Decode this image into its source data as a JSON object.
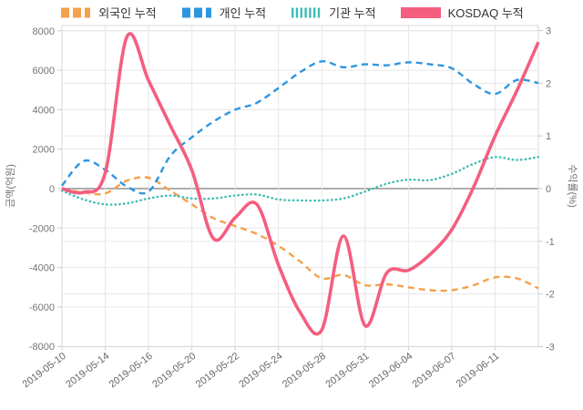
{
  "chart_data": {
    "type": "line",
    "title": "",
    "legend_position": "top",
    "grid": true,
    "x_tick_labels": [
      "2019-05-10",
      "2019-05-14",
      "2019-05-16",
      "2019-05-20",
      "2019-05-22",
      "2019-05-24",
      "2019-05-28",
      "2019-05-31",
      "2019-06-04",
      "2019-06-07",
      "2019-06-11"
    ],
    "x_tick_every_n_points": 2,
    "y_left": {
      "label": "금액(억원)",
      "ticks": [
        8000,
        6000,
        4000,
        2000,
        0,
        -2000,
        -4000,
        -6000,
        -8000
      ],
      "range": [
        -8000,
        8000
      ]
    },
    "y_right": {
      "label": "수익률(%)",
      "ticks": [
        3,
        2,
        1,
        0,
        -1,
        -2,
        -3
      ],
      "range": [
        -3,
        3
      ]
    },
    "series": [
      {
        "name": "외국인 누적",
        "color": "#F5A14B",
        "style": "dashed",
        "axis": "left",
        "values": [
          0,
          -200,
          -250,
          400,
          550,
          -100,
          -800,
          -1500,
          -1900,
          -2300,
          -2900,
          -3700,
          -4550,
          -4380,
          -4900,
          -4850,
          -5000,
          -5150,
          -5150,
          -4900,
          -4500,
          -4550,
          -5050
        ]
      },
      {
        "name": "개인 누적",
        "color": "#2E96E0",
        "style": "dashed",
        "axis": "left",
        "values": [
          150,
          1400,
          950,
          100,
          -150,
          1650,
          2600,
          3400,
          4000,
          4350,
          5100,
          5900,
          6450,
          6150,
          6300,
          6250,
          6400,
          6300,
          6100,
          5300,
          4800,
          5500,
          5350
        ]
      },
      {
        "name": "기관 누적",
        "color": "#3FBCB2",
        "style": "dotted",
        "axis": "left",
        "values": [
          -100,
          -550,
          -800,
          -750,
          -500,
          -350,
          -500,
          -500,
          -350,
          -300,
          -550,
          -600,
          -600,
          -500,
          -150,
          250,
          450,
          430,
          750,
          1250,
          1600,
          1450,
          1600
        ]
      },
      {
        "name": "KOSDAQ 누적",
        "color": "#F45E7F",
        "style": "solid",
        "axis": "right",
        "values": [
          0,
          -0.07,
          0.3,
          2.88,
          2.05,
          1.2,
          0.35,
          -0.95,
          -0.55,
          -0.3,
          -1.45,
          -2.35,
          -2.68,
          -0.9,
          -2.6,
          -1.6,
          -1.55,
          -1.25,
          -0.78,
          0.02,
          1.0,
          1.85,
          2.78
        ]
      }
    ],
    "colors": {
      "grid": "#e6e6e6",
      "zero_line": "#7d7d7d",
      "tick_text": "#757575",
      "x_tick_text": "#666666",
      "border": "#d9d9d9"
    }
  }
}
